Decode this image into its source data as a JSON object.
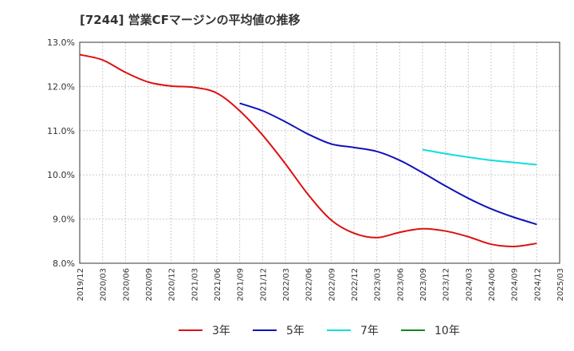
{
  "chart_data": {
    "type": "line",
    "title": "[7244]  営業CFマージンの平均値の推移",
    "xlabel": "",
    "ylabel": "",
    "ylim": [
      8.0,
      13.0
    ],
    "yticks": [
      "8.0%",
      "9.0%",
      "10.0%",
      "11.0%",
      "12.0%",
      "13.0%"
    ],
    "categories": [
      "2019/12",
      "2020/03",
      "2020/06",
      "2020/09",
      "2020/12",
      "2021/03",
      "2021/06",
      "2021/09",
      "2021/12",
      "2022/03",
      "2022/06",
      "2022/09",
      "2022/12",
      "2023/03",
      "2023/06",
      "2023/09",
      "2023/12",
      "2024/03",
      "2024/06",
      "2024/09",
      "2024/12",
      "2025/03"
    ],
    "grid": true,
    "legend_position": "bottom",
    "series": [
      {
        "name": "3年",
        "color": "#dd1111",
        "values": [
          12.72,
          12.6,
          12.32,
          12.1,
          12.01,
          11.98,
          11.85,
          11.45,
          10.9,
          10.25,
          9.55,
          8.98,
          8.68,
          8.58,
          8.7,
          8.78,
          8.73,
          8.6,
          8.43,
          8.38,
          8.45,
          null
        ]
      },
      {
        "name": "5年",
        "color": "#1111bb",
        "values": [
          null,
          null,
          null,
          null,
          null,
          null,
          null,
          11.62,
          11.45,
          11.2,
          10.92,
          10.7,
          10.62,
          10.53,
          10.33,
          10.05,
          9.75,
          9.47,
          9.23,
          9.04,
          8.88,
          null
        ]
      },
      {
        "name": "7年",
        "color": "#11dddd",
        "values": [
          null,
          null,
          null,
          null,
          null,
          null,
          null,
          null,
          null,
          null,
          null,
          null,
          null,
          null,
          null,
          10.57,
          10.48,
          10.4,
          10.33,
          10.28,
          10.23,
          null
        ]
      },
      {
        "name": "10年",
        "color": "#11881d",
        "values": [
          null,
          null,
          null,
          null,
          null,
          null,
          null,
          null,
          null,
          null,
          null,
          null,
          null,
          null,
          null,
          null,
          null,
          null,
          null,
          null,
          null,
          null
        ]
      }
    ]
  }
}
